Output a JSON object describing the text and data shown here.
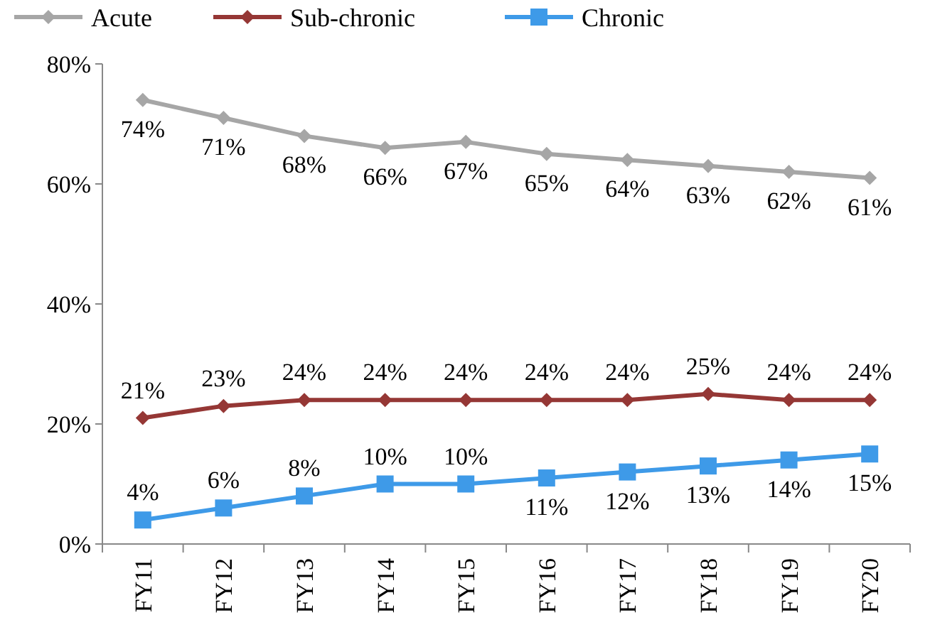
{
  "chart_data": {
    "type": "line",
    "categories": [
      "FY11",
      "FY12",
      "FY13",
      "FY14",
      "FY15",
      "FY16",
      "FY17",
      "FY18",
      "FY19",
      "FY20"
    ],
    "series": [
      {
        "name": "Acute",
        "color": "#a6a6a6",
        "marker": "diamond",
        "values": [
          74,
          71,
          68,
          66,
          67,
          65,
          64,
          63,
          62,
          61
        ],
        "value_labels": [
          "74%",
          "71%",
          "68%",
          "66%",
          "67%",
          "65%",
          "64%",
          "63%",
          "62%",
          "61%"
        ]
      },
      {
        "name": "Sub-chronic",
        "color": "#953735",
        "marker": "diamond",
        "values": [
          21,
          23,
          24,
          24,
          24,
          24,
          24,
          25,
          24,
          24
        ],
        "value_labels": [
          "21%",
          "23%",
          "24%",
          "24%",
          "24%",
          "24%",
          "24%",
          "25%",
          "24%",
          "24%"
        ]
      },
      {
        "name": "Chronic",
        "color": "#3e9ae8",
        "marker": "square",
        "values": [
          4,
          6,
          8,
          10,
          10,
          11,
          12,
          13,
          14,
          15
        ],
        "value_labels": [
          "4%",
          "6%",
          "8%",
          "10%",
          "10%",
          "11%",
          "12%",
          "13%",
          "14%",
          "15%"
        ]
      }
    ],
    "ylim": [
      0,
      80
    ],
    "yticks": [
      {
        "value": 0,
        "label": "0%"
      },
      {
        "value": 20,
        "label": "20%"
      },
      {
        "value": 40,
        "label": "40%"
      },
      {
        "value": 60,
        "label": "60%"
      },
      {
        "value": 80,
        "label": "80%"
      }
    ],
    "legend": "top",
    "grid": false
  }
}
